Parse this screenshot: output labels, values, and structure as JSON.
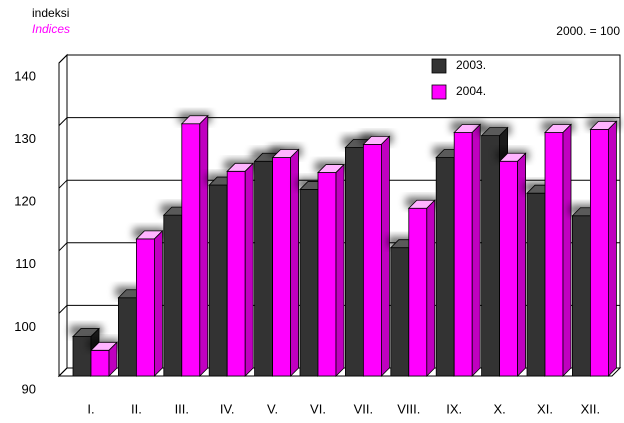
{
  "chart_data": {
    "type": "bar3d",
    "title": "indeksi",
    "subtitle": "Indices",
    "annotation": "2000. = 100",
    "categories": [
      "I.",
      "II.",
      "III.",
      "IV.",
      "V.",
      "VI.",
      "VII.",
      "VIII.",
      "IX.",
      "X.",
      "XI.",
      "XII."
    ],
    "series": [
      {
        "name": "2003.",
        "color": "#333333",
        "values": [
          96.3,
          102.5,
          115.7,
          120.5,
          124.3,
          119.8,
          126.5,
          110.5,
          124.9,
          128.4,
          119.2,
          115.6
        ]
      },
      {
        "name": "2004.",
        "color": "#ff00ff",
        "values": [
          94.1,
          111.9,
          130.3,
          122.7,
          124.9,
          122.5,
          127.0,
          116.8,
          128.9,
          124.3,
          128.9,
          129.4
        ]
      }
    ],
    "ylim": [
      90,
      140
    ],
    "yticks": [
      90,
      100,
      110,
      120,
      130,
      140
    ],
    "grid": true,
    "legend": "top-right"
  }
}
